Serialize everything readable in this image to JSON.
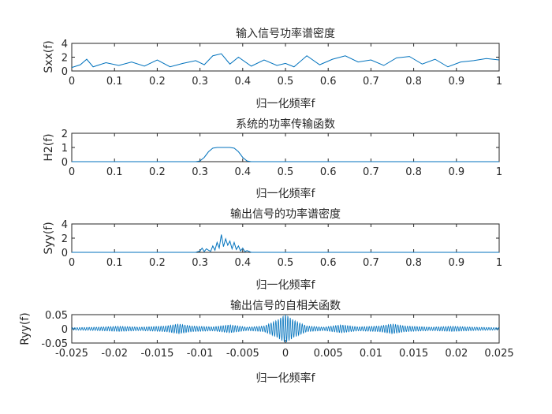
{
  "chart_data": [
    {
      "type": "line",
      "title": "输入信号功率谱密度",
      "xlabel": "归一化频率f",
      "ylabel": "Sxx(f)",
      "xlim": [
        0,
        1
      ],
      "ylim": [
        0,
        4
      ],
      "xticks": [
        "0",
        "0.1",
        "0.2",
        "0.3",
        "0.4",
        "0.5",
        "0.6",
        "0.7",
        "0.8",
        "0.9",
        "1"
      ],
      "yticks": [
        "0",
        "2",
        "4"
      ],
      "grid": false,
      "color": "#0072bd",
      "series": [
        {
          "x": [
            0,
            0.02,
            0.035,
            0.05,
            0.08,
            0.11,
            0.14,
            0.17,
            0.2,
            0.23,
            0.26,
            0.29,
            0.31,
            0.33,
            0.35,
            0.37,
            0.39,
            0.42,
            0.45,
            0.48,
            0.5,
            0.52,
            0.55,
            0.58,
            0.61,
            0.64,
            0.67,
            0.7,
            0.73,
            0.76,
            0.79,
            0.82,
            0.85,
            0.88,
            0.91,
            0.94,
            0.97,
            1
          ],
          "y": [
            0.5,
            0.9,
            1.7,
            0.6,
            1.2,
            0.8,
            1.3,
            0.7,
            1.6,
            0.6,
            1.1,
            1.5,
            0.9,
            2.2,
            2.5,
            1.0,
            2.0,
            0.7,
            1.6,
            0.8,
            1.1,
            0.6,
            2.2,
            0.9,
            1.7,
            2.2,
            1.3,
            1.6,
            0.8,
            1.9,
            2.1,
            1.0,
            1.7,
            0.6,
            1.3,
            1.5,
            1.8,
            1.6
          ]
        }
      ]
    },
    {
      "type": "line",
      "title": "系统的功率传输函数",
      "xlabel": "归一化频率f",
      "ylabel": "H2(f)",
      "xlim": [
        0,
        1
      ],
      "ylim": [
        0,
        2
      ],
      "xticks": [
        "0",
        "0.1",
        "0.2",
        "0.3",
        "0.4",
        "0.5",
        "0.6",
        "0.7",
        "0.8",
        "0.9",
        "1"
      ],
      "yticks": [
        "0",
        "1",
        "2"
      ],
      "grid": false,
      "color": "#0072bd",
      "series": [
        {
          "x": [
            0,
            0.29,
            0.3,
            0.31,
            0.32,
            0.33,
            0.34,
            0.35,
            0.36,
            0.37,
            0.38,
            0.39,
            0.4,
            0.41,
            0.42,
            1
          ],
          "y": [
            0,
            0,
            0.05,
            0.3,
            0.7,
            0.95,
            1.0,
            1.0,
            1.0,
            1.0,
            0.95,
            0.7,
            0.3,
            0.05,
            0,
            0
          ]
        }
      ]
    },
    {
      "type": "line",
      "title": "输出信号的功率谱密度",
      "xlabel": "归一化频率f",
      "ylabel": "Syy(f)",
      "xlim": [
        0,
        1
      ],
      "ylim": [
        0,
        4
      ],
      "xticks": [
        "0",
        "0.1",
        "0.2",
        "0.3",
        "0.4",
        "0.5",
        "0.6",
        "0.7",
        "0.8",
        "0.9",
        "1"
      ],
      "yticks": [
        "0",
        "2",
        "4"
      ],
      "grid": false,
      "color": "#0072bd",
      "series": [
        {
          "x": [
            0,
            0.29,
            0.3,
            0.305,
            0.31,
            0.315,
            0.32,
            0.325,
            0.33,
            0.335,
            0.34,
            0.345,
            0.35,
            0.355,
            0.36,
            0.365,
            0.37,
            0.375,
            0.38,
            0.385,
            0.39,
            0.395,
            0.4,
            0.405,
            0.41,
            0.42,
            1
          ],
          "y": [
            0,
            0,
            0.2,
            0.6,
            0.1,
            0.5,
            0.3,
            0.15,
            0.9,
            0.3,
            1.4,
            0.6,
            2.5,
            0.8,
            1.9,
            1.0,
            1.6,
            0.5,
            1.4,
            0.4,
            0.9,
            0.2,
            0.6,
            0.1,
            0.25,
            0,
            0
          ]
        }
      ]
    },
    {
      "type": "line",
      "title": "输出信号的自相关函数",
      "xlabel": "归一化频率f",
      "ylabel": "Ryy(f)",
      "xlim": [
        -0.025,
        0.025
      ],
      "ylim": [
        -0.05,
        0.05
      ],
      "xticks": [
        "-0.025",
        "-0.02",
        "-0.015",
        "-0.01",
        "-0.005",
        "0",
        "0.005",
        "0.01",
        "0.015",
        "0.02",
        "0.025"
      ],
      "yticks": [
        "-0.05",
        "0",
        "0.05"
      ],
      "grid": false,
      "color": "#0072bd",
      "series": [
        {
          "envelope_x": [
            -0.025,
            -0.022,
            -0.0195,
            -0.017,
            -0.014,
            -0.0125,
            -0.011,
            -0.0085,
            -0.0065,
            -0.0045,
            -0.0025,
            -0.001,
            0,
            0.001,
            0.0025,
            0.0045,
            0.0065,
            0.0085,
            0.011,
            0.0125,
            0.014,
            0.017,
            0.0195,
            0.022,
            0.025
          ],
          "envelope_y": [
            0.004,
            0.006,
            0.009,
            0.006,
            0.01,
            0.017,
            0.01,
            0.007,
            0.014,
            0.006,
            0.01,
            0.03,
            0.05,
            0.03,
            0.01,
            0.006,
            0.014,
            0.007,
            0.01,
            0.017,
            0.01,
            0.006,
            0.009,
            0.006,
            0.004
          ],
          "carrier_period": 0.00028
        }
      ]
    }
  ]
}
